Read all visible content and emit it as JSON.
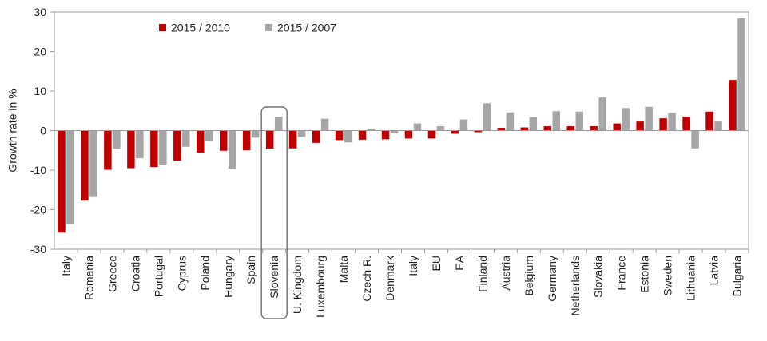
{
  "chart_data": {
    "type": "bar",
    "title": "",
    "xlabel": "",
    "ylabel": "Growth rate in %",
    "ylim": [
      -30,
      30
    ],
    "yticks": [
      -30,
      -20,
      -10,
      0,
      10,
      20,
      30
    ],
    "grid": false,
    "legend_position": "top-left",
    "highlighted_category": "Slovenia",
    "categories": [
      "Italy",
      "Romania",
      "Greece",
      "Croatia",
      "Portugal",
      "Cyprus",
      "Poland",
      "Hungary",
      "Spain",
      "Slovenia",
      "U. Kingdom",
      "Luxembourg",
      "Malta",
      "Czech R.",
      "Denmark",
      "Italy",
      "EU",
      "EA",
      "Finland",
      "Austria",
      "Belgium",
      "Germany",
      "Netherlands",
      "Slovakia",
      "France",
      "Estonia",
      "Sweden",
      "Lithuania",
      "Latvia",
      "Bulgaria"
    ],
    "series": [
      {
        "name": "2015 / 2010",
        "color": "#c00000",
        "values": [
          -25.8,
          -17.7,
          -9.9,
          -9.5,
          -9.2,
          -7.6,
          -5.6,
          -5.1,
          -5.0,
          -4.6,
          -4.5,
          -3.1,
          -2.4,
          -2.3,
          -2.2,
          -2.0,
          -2.0,
          -0.8,
          -0.4,
          0.7,
          0.8,
          1.1,
          1.1,
          1.1,
          1.8,
          2.3,
          3.1,
          3.5,
          4.8,
          12.8
        ]
      },
      {
        "name": "2015 / 2007",
        "color": "#a6a6a6",
        "values": [
          -23.6,
          -16.8,
          -4.6,
          -7.0,
          -8.6,
          -4.1,
          -2.6,
          -9.6,
          -1.8,
          3.5,
          -1.6,
          3.0,
          -3.0,
          0.5,
          -0.7,
          1.8,
          1.1,
          2.8,
          6.9,
          4.6,
          3.4,
          4.9,
          4.8,
          8.4,
          5.7,
          6.0,
          4.5,
          -4.5,
          2.3,
          28.4
        ]
      }
    ]
  }
}
